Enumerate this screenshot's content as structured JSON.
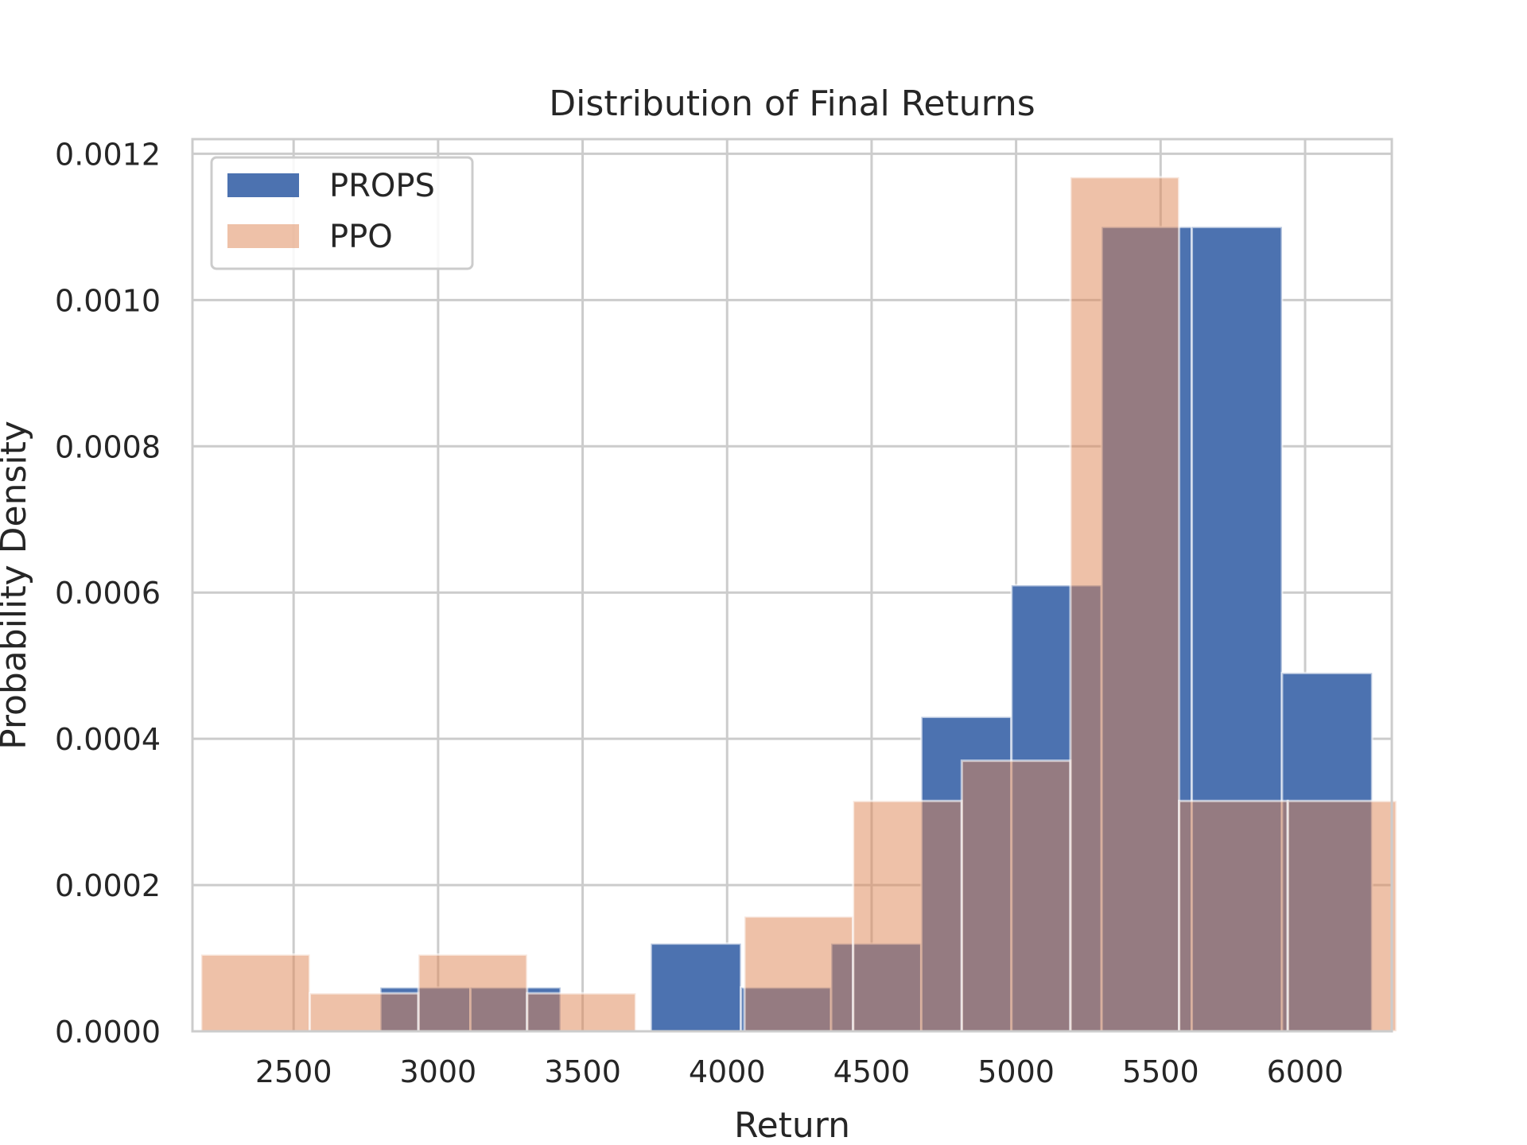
{
  "chart_data": {
    "type": "bar",
    "title": "Distribution of Final Returns",
    "xlabel": "Return",
    "ylabel": "Probability Density",
    "xlim": [
      2150,
      6300
    ],
    "ylim": [
      0,
      0.00122
    ],
    "xticks": [
      2500,
      3000,
      3500,
      4000,
      4500,
      5000,
      5500,
      6000
    ],
    "xtick_labels": [
      "2500",
      "3000",
      "3500",
      "4000",
      "4500",
      "5000",
      "5500",
      "6000"
    ],
    "yticks": [
      0,
      0.0002,
      0.0004,
      0.0006,
      0.0008,
      0.001,
      0.0012
    ],
    "ytick_labels": [
      "0.0000",
      "0.0002",
      "0.0004",
      "0.0006",
      "0.0008",
      "0.0010",
      "0.0012"
    ],
    "grid": true,
    "legend_position": "top-left",
    "series": [
      {
        "name": "PROPS",
        "color": "#4c72b0",
        "opacity": 1,
        "bins": [
          {
            "x0": 2800,
            "x1": 3112,
            "y": 6e-05
          },
          {
            "x0": 3112,
            "x1": 3424,
            "y": 6e-05
          },
          {
            "x0": 3424,
            "x1": 3736,
            "y": 0
          },
          {
            "x0": 3736,
            "x1": 4048,
            "y": 0.00012
          },
          {
            "x0": 4048,
            "x1": 4360,
            "y": 6e-05
          },
          {
            "x0": 4360,
            "x1": 4672,
            "y": 0.00012
          },
          {
            "x0": 4672,
            "x1": 4984,
            "y": 0.00043
          },
          {
            "x0": 4984,
            "x1": 5296,
            "y": 0.00061
          },
          {
            "x0": 5296,
            "x1": 5608,
            "y": 0.0011
          },
          {
            "x0": 5608,
            "x1": 5920,
            "y": 0.0011
          },
          {
            "x0": 5920,
            "x1": 6232,
            "y": 0.00049
          }
        ]
      },
      {
        "name": "PPO",
        "color": "#dd8452",
        "opacity": 0.5,
        "bins": [
          {
            "x0": 2180,
            "x1": 2556,
            "y": 0.000105
          },
          {
            "x0": 2556,
            "x1": 2932,
            "y": 5.2e-05
          },
          {
            "x0": 2932,
            "x1": 3308,
            "y": 0.000105
          },
          {
            "x0": 3308,
            "x1": 3684,
            "y": 5.2e-05
          },
          {
            "x0": 3684,
            "x1": 4060,
            "y": 0
          },
          {
            "x0": 4060,
            "x1": 4436,
            "y": 0.000157
          },
          {
            "x0": 4436,
            "x1": 4812,
            "y": 0.000315
          },
          {
            "x0": 4812,
            "x1": 5188,
            "y": 0.00037
          },
          {
            "x0": 5188,
            "x1": 5564,
            "y": 0.001168
          },
          {
            "x0": 5564,
            "x1": 5940,
            "y": 0.000315
          },
          {
            "x0": 5940,
            "x1": 6316,
            "y": 0.000315
          }
        ]
      }
    ]
  }
}
